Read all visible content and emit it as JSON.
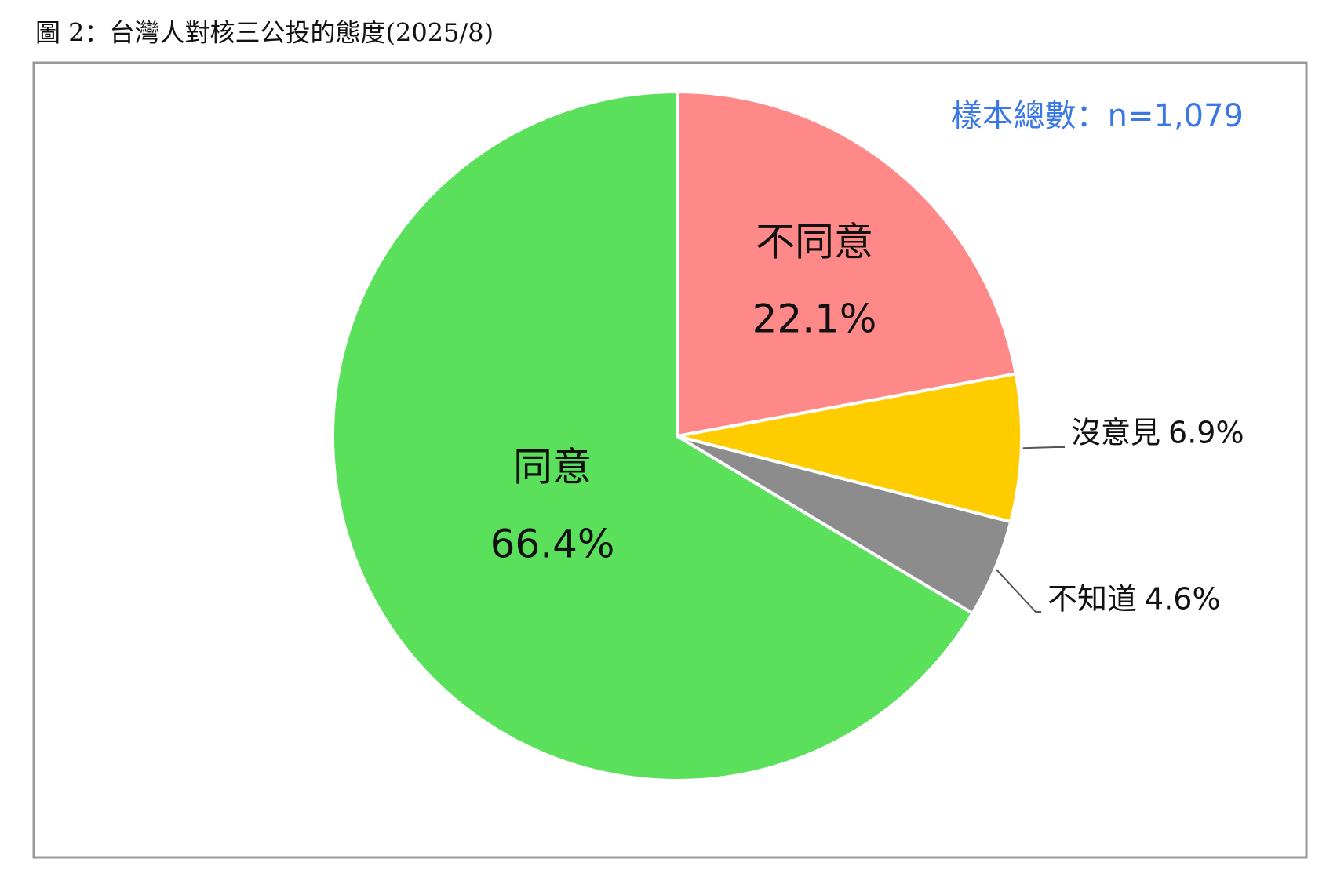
{
  "chart_data": {
    "type": "pie",
    "title": "圖 2：台灣人對核三公投的態度(2025/8)",
    "annotation": "樣本總數：n=1,079",
    "categories": [
      "不同意",
      "沒意見",
      "不知道",
      "同意"
    ],
    "values": [
      22.1,
      6.9,
      4.6,
      66.4
    ],
    "value_labels": [
      "22.1%",
      "6.9%",
      "4.6%",
      "66.4%"
    ],
    "colors": [
      "#ff8888",
      "#ffcc00",
      "#8c8c8c",
      "#5ae05a"
    ]
  }
}
